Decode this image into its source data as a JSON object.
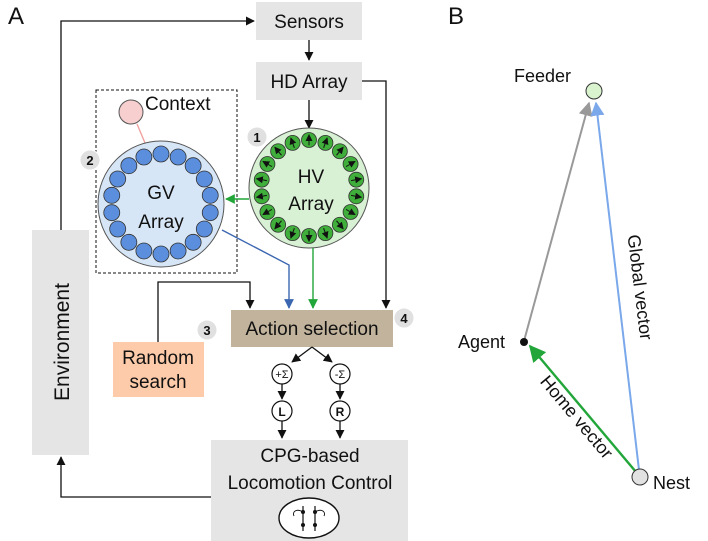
{
  "panel_a": {
    "label": "A",
    "sensors": "Sensors",
    "hd_array": "HD Array",
    "context": "Context",
    "gv_array": {
      "line1": "GV",
      "line2": "Array",
      "badge": "2"
    },
    "hv_array": {
      "line1": "HV",
      "line2": "Array",
      "badge": "1"
    },
    "environment": "Environment",
    "action_selection": {
      "label": "Action selection",
      "badge_left": "3",
      "badge_right": "4"
    },
    "random_search": {
      "line1": "Random",
      "line2": "search"
    },
    "plus_sigma": "+Σ",
    "minus_sigma": "-Σ",
    "left_node": "L",
    "right_node": "R",
    "locomotion": {
      "line1": "CPG-based",
      "line2": "Locomotion Control"
    }
  },
  "panel_b": {
    "label": "B",
    "feeder": "Feeder",
    "agent": "Agent",
    "nest": "Nest",
    "global_vector": "Global vector",
    "home_vector": "Home vector"
  },
  "colors": {
    "box_gray": "#e5e5e5",
    "action_brown": "#c2b49c",
    "random_orange": "#fdcbaa",
    "gv_fill": "#d7e6f6",
    "gv_dot": "#5b8fde",
    "hv_fill": "#d8f0d4",
    "hv_dot": "#3fae3a",
    "context_pink": "#f8cfcf",
    "green_arrow": "#22a63a",
    "blue_arrow": "#3b66b0",
    "light_blue": "#7aa8ea",
    "gray_arrow": "#999999",
    "feeder_green": "#d9f3cf"
  }
}
